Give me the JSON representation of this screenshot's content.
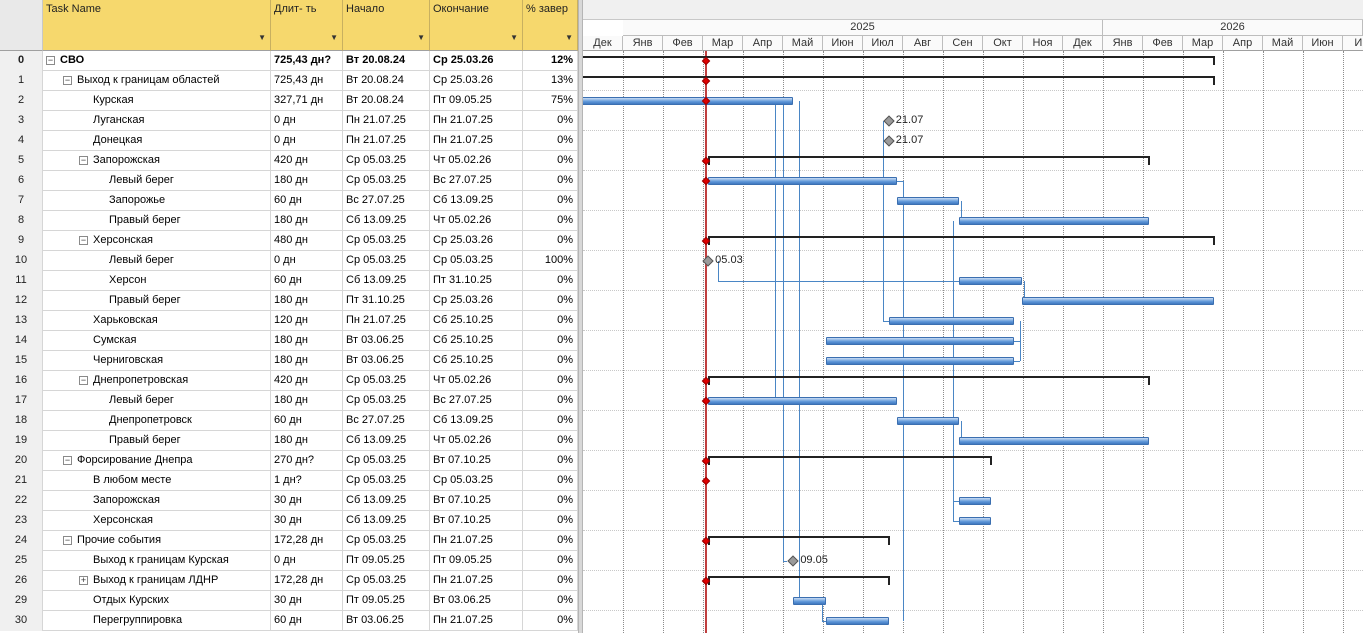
{
  "columns": {
    "id": "",
    "name": "Task Name",
    "duration": "Длит- ть",
    "start": "Начало",
    "end": "Окончание",
    "pct": "% завер"
  },
  "rows": [
    {
      "id": "0",
      "name": "СВО",
      "dur": "725,43 дн?",
      "start": "Вт 20.08.24",
      "end": "Ср 25.03.26",
      "pct": "12%",
      "level": 0,
      "toggle": "−",
      "bold": true
    },
    {
      "id": "1",
      "name": "Выход к границам областей",
      "dur": "725,43 дн",
      "start": "Вт 20.08.24",
      "end": "Ср 25.03.26",
      "pct": "13%",
      "level": 1,
      "toggle": "−"
    },
    {
      "id": "2",
      "name": "Курская",
      "dur": "327,71 дн",
      "start": "Вт 20.08.24",
      "end": "Пт 09.05.25",
      "pct": "75%",
      "level": 2
    },
    {
      "id": "3",
      "name": "Луганская",
      "dur": "0 дн",
      "start": "Пн 21.07.25",
      "end": "Пн 21.07.25",
      "pct": "0%",
      "level": 2
    },
    {
      "id": "4",
      "name": "Донецкая",
      "dur": "0 дн",
      "start": "Пн 21.07.25",
      "end": "Пн 21.07.25",
      "pct": "0%",
      "level": 2
    },
    {
      "id": "5",
      "name": "Запорожская",
      "dur": "420 дн",
      "start": "Ср 05.03.25",
      "end": "Чт 05.02.26",
      "pct": "0%",
      "level": 2,
      "toggle": "−"
    },
    {
      "id": "6",
      "name": "Левый берег",
      "dur": "180 дн",
      "start": "Ср 05.03.25",
      "end": "Вс 27.07.25",
      "pct": "0%",
      "level": 3
    },
    {
      "id": "7",
      "name": "Запорожье",
      "dur": "60 дн",
      "start": "Вс 27.07.25",
      "end": "Сб 13.09.25",
      "pct": "0%",
      "level": 3
    },
    {
      "id": "8",
      "name": "Правый берег",
      "dur": "180 дн",
      "start": "Сб 13.09.25",
      "end": "Чт 05.02.26",
      "pct": "0%",
      "level": 3
    },
    {
      "id": "9",
      "name": "Херсонская",
      "dur": "480 дн",
      "start": "Ср 05.03.25",
      "end": "Ср 25.03.26",
      "pct": "0%",
      "level": 2,
      "toggle": "−"
    },
    {
      "id": "10",
      "name": "Левый берег",
      "dur": "0 дн",
      "start": "Ср 05.03.25",
      "end": "Ср 05.03.25",
      "pct": "100%",
      "level": 3
    },
    {
      "id": "11",
      "name": "Херсон",
      "dur": "60 дн",
      "start": "Сб 13.09.25",
      "end": "Пт 31.10.25",
      "pct": "0%",
      "level": 3
    },
    {
      "id": "12",
      "name": "Правый берег",
      "dur": "180 дн",
      "start": "Пт 31.10.25",
      "end": "Ср 25.03.26",
      "pct": "0%",
      "level": 3
    },
    {
      "id": "13",
      "name": "Харьковская",
      "dur": "120 дн",
      "start": "Пн 21.07.25",
      "end": "Сб 25.10.25",
      "pct": "0%",
      "level": 2
    },
    {
      "id": "14",
      "name": "Сумская",
      "dur": "180 дн",
      "start": "Вт 03.06.25",
      "end": "Сб 25.10.25",
      "pct": "0%",
      "level": 2
    },
    {
      "id": "15",
      "name": "Черниговская",
      "dur": "180 дн",
      "start": "Вт 03.06.25",
      "end": "Сб 25.10.25",
      "pct": "0%",
      "level": 2
    },
    {
      "id": "16",
      "name": "Днепропетровская",
      "dur": "420 дн",
      "start": "Ср 05.03.25",
      "end": "Чт 05.02.26",
      "pct": "0%",
      "level": 2,
      "toggle": "−"
    },
    {
      "id": "17",
      "name": "Левый берег",
      "dur": "180 дн",
      "start": "Ср 05.03.25",
      "end": "Вс 27.07.25",
      "pct": "0%",
      "level": 3
    },
    {
      "id": "18",
      "name": "Днепропетровск",
      "dur": "60 дн",
      "start": "Вс 27.07.25",
      "end": "Сб 13.09.25",
      "pct": "0%",
      "level": 3
    },
    {
      "id": "19",
      "name": "Правый берег",
      "dur": "180 дн",
      "start": "Сб 13.09.25",
      "end": "Чт 05.02.26",
      "pct": "0%",
      "level": 3
    },
    {
      "id": "20",
      "name": "Форсирование Днепра",
      "dur": "270 дн?",
      "start": "Ср 05.03.25",
      "end": "Вт 07.10.25",
      "pct": "0%",
      "level": 1,
      "toggle": "−"
    },
    {
      "id": "21",
      "name": "В любом месте",
      "dur": "1 дн?",
      "start": "Ср 05.03.25",
      "end": "Ср 05.03.25",
      "pct": "0%",
      "level": 2
    },
    {
      "id": "22",
      "name": "Запорожская",
      "dur": "30 дн",
      "start": "Сб 13.09.25",
      "end": "Вт 07.10.25",
      "pct": "0%",
      "level": 2
    },
    {
      "id": "23",
      "name": "Херсонская",
      "dur": "30 дн",
      "start": "Сб 13.09.25",
      "end": "Вт 07.10.25",
      "pct": "0%",
      "level": 2
    },
    {
      "id": "24",
      "name": "Прочие события",
      "dur": "172,28 дн",
      "start": "Ср 05.03.25",
      "end": "Пн 21.07.25",
      "pct": "0%",
      "level": 1,
      "toggle": "−"
    },
    {
      "id": "25",
      "name": "Выход к границам Курская",
      "dur": "0 дн",
      "start": "Пт 09.05.25",
      "end": "Пт 09.05.25",
      "pct": "0%",
      "level": 2
    },
    {
      "id": "26",
      "name": "Выход к границам ЛДНР",
      "dur": "172,28 дн",
      "start": "Ср 05.03.25",
      "end": "Пн 21.07.25",
      "pct": "0%",
      "level": 2,
      "toggle": "+"
    },
    {
      "id": "29",
      "name": "Отдых Курских",
      "dur": "30 дн",
      "start": "Пт 09.05.25",
      "end": "Вт 03.06.25",
      "pct": "0%",
      "level": 2
    },
    {
      "id": "30",
      "name": "Перегруппировка",
      "dur": "60 дн",
      "start": "Вт 03.06.25",
      "end": "Пн 21.07.25",
      "pct": "0%",
      "level": 2
    }
  ],
  "timeline": {
    "years": [
      {
        "label": "2025"
      },
      {
        "label": "2026"
      }
    ],
    "months": [
      "Дек",
      "Янв",
      "Фев",
      "Мар",
      "Апр",
      "Май",
      "Июн",
      "Июл",
      "Авг",
      "Сен",
      "Окт",
      "Ноя",
      "Дек",
      "Янв",
      "Фев",
      "Мар",
      "Апр",
      "Май",
      "Июн",
      "Ию"
    ]
  },
  "gantt": {
    "month_origin": "2024-12-01",
    "tasks": [
      {
        "row": 0,
        "type": "summary",
        "start": "2024-08-20",
        "end": "2026-03-25"
      },
      {
        "row": 1,
        "type": "summary",
        "start": "2024-08-20",
        "end": "2026-03-25"
      },
      {
        "row": 2,
        "type": "bar",
        "start": "2024-08-20",
        "end": "2025-05-09"
      },
      {
        "row": 3,
        "type": "milestone",
        "date": "2025-07-21",
        "label": "21.07"
      },
      {
        "row": 4,
        "type": "milestone",
        "date": "2025-07-21",
        "label": "21.07"
      },
      {
        "row": 5,
        "type": "summary",
        "start": "2025-03-05",
        "end": "2026-02-05"
      },
      {
        "row": 6,
        "type": "bar",
        "start": "2025-03-05",
        "end": "2025-07-27"
      },
      {
        "row": 7,
        "type": "bar",
        "start": "2025-07-27",
        "end": "2025-09-13"
      },
      {
        "row": 8,
        "type": "bar",
        "start": "2025-09-13",
        "end": "2026-02-05"
      },
      {
        "row": 9,
        "type": "summary",
        "start": "2025-03-05",
        "end": "2026-03-25"
      },
      {
        "row": 10,
        "type": "milestone",
        "date": "2025-03-05",
        "label": "05.03"
      },
      {
        "row": 11,
        "type": "bar",
        "start": "2025-09-13",
        "end": "2025-10-31"
      },
      {
        "row": 12,
        "type": "bar",
        "start": "2025-10-31",
        "end": "2026-03-25"
      },
      {
        "row": 13,
        "type": "bar",
        "start": "2025-07-21",
        "end": "2025-10-25"
      },
      {
        "row": 14,
        "type": "bar",
        "start": "2025-06-03",
        "end": "2025-10-25"
      },
      {
        "row": 15,
        "type": "bar",
        "start": "2025-06-03",
        "end": "2025-10-25"
      },
      {
        "row": 16,
        "type": "summary",
        "start": "2025-03-05",
        "end": "2026-02-05"
      },
      {
        "row": 17,
        "type": "bar",
        "start": "2025-03-05",
        "end": "2025-07-27"
      },
      {
        "row": 18,
        "type": "bar",
        "start": "2025-07-27",
        "end": "2025-09-13"
      },
      {
        "row": 19,
        "type": "bar",
        "start": "2025-09-13",
        "end": "2026-02-05"
      },
      {
        "row": 20,
        "type": "summary",
        "start": "2025-03-05",
        "end": "2025-10-07"
      },
      {
        "row": 22,
        "type": "bar",
        "start": "2025-09-13",
        "end": "2025-10-07"
      },
      {
        "row": 23,
        "type": "bar",
        "start": "2025-09-13",
        "end": "2025-10-07"
      },
      {
        "row": 24,
        "type": "summary",
        "start": "2025-03-05",
        "end": "2025-07-21"
      },
      {
        "row": 25,
        "type": "milestone",
        "date": "2025-05-09",
        "label": "09.05"
      },
      {
        "row": 26,
        "type": "summary",
        "start": "2025-03-05",
        "end": "2025-07-21"
      },
      {
        "row": 27,
        "type": "bar",
        "start": "2025-05-09",
        "end": "2025-06-03"
      },
      {
        "row": 28,
        "type": "bar",
        "start": "2025-06-03",
        "end": "2025-07-21"
      }
    ],
    "deadline_rows": [
      0,
      1,
      2,
      5,
      6,
      9,
      16,
      17,
      20,
      21,
      24,
      26
    ]
  },
  "colors": {
    "header": "#f6d86d",
    "bar": "#5d96d8",
    "status_line": "#c04040",
    "deadline": "#e00000"
  }
}
